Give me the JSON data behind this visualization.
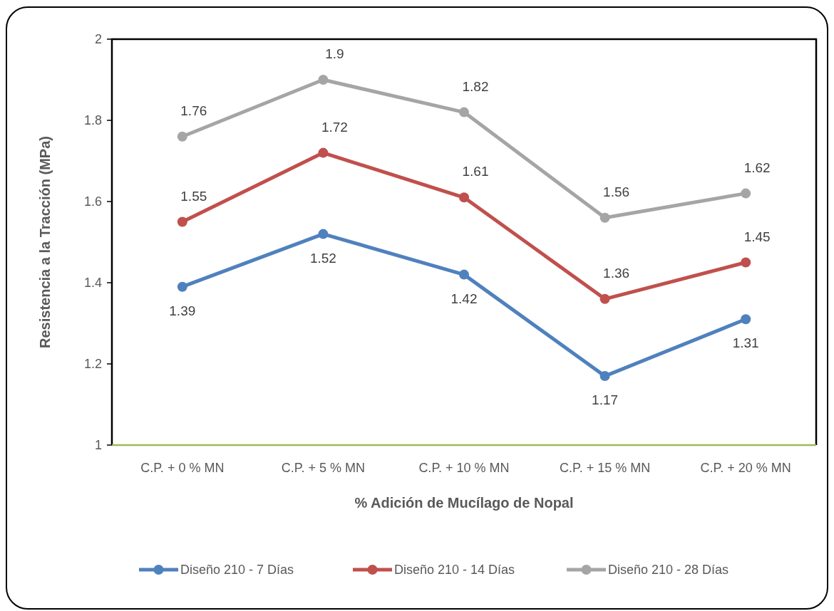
{
  "chart_data": {
    "type": "line",
    "xlabel": "% Adición de Mucílago de Nopal",
    "ylabel": "Resistencia a la Tracción (MPa)",
    "categories": [
      "C.P. + 0 % MN",
      "C.P. + 5 % MN",
      "C.P. + 10 % MN",
      "C.P. + 15 % MN",
      "C.P. + 20 % MN"
    ],
    "series": [
      {
        "name": "Diseño 210 - 7 Días",
        "color": "#4f81bd",
        "values": [
          1.39,
          1.52,
          1.42,
          1.17,
          1.31
        ]
      },
      {
        "name": "Diseño 210 - 14 Días",
        "color": "#c0504d",
        "values": [
          1.55,
          1.72,
          1.61,
          1.36,
          1.45
        ]
      },
      {
        "name": "Diseño 210 - 28 Días",
        "color": "#a5a5a5",
        "values": [
          1.76,
          1.9,
          1.82,
          1.56,
          1.62
        ]
      }
    ],
    "ylim": [
      1,
      2
    ],
    "yticks": [
      1,
      1.2,
      1.4,
      1.6,
      1.8,
      2
    ],
    "grid": false,
    "legend": "bottom",
    "marker": "circle",
    "line_style": "solid",
    "data_labels": true
  }
}
